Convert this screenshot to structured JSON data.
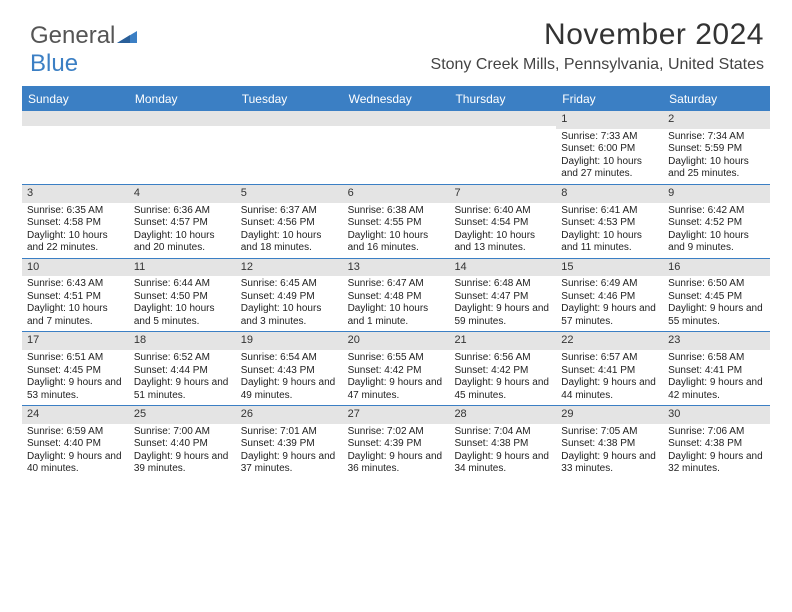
{
  "brand": {
    "word1": "General",
    "word2": "Blue"
  },
  "title": "November 2024",
  "location": "Stony Creek Mills, Pennsylvania, United States",
  "colors": {
    "accent": "#3b7fc4",
    "header_text": "#ffffff",
    "daynum_bg": "#e4e4e4",
    "body_text": "#222222",
    "page_bg": "#ffffff"
  },
  "dayHeaders": [
    "Sunday",
    "Monday",
    "Tuesday",
    "Wednesday",
    "Thursday",
    "Friday",
    "Saturday"
  ],
  "weeks": [
    [
      {
        "n": "",
        "sr": "",
        "ss": "",
        "dl": ""
      },
      {
        "n": "",
        "sr": "",
        "ss": "",
        "dl": ""
      },
      {
        "n": "",
        "sr": "",
        "ss": "",
        "dl": ""
      },
      {
        "n": "",
        "sr": "",
        "ss": "",
        "dl": ""
      },
      {
        "n": "",
        "sr": "",
        "ss": "",
        "dl": ""
      },
      {
        "n": "1",
        "sr": "Sunrise: 7:33 AM",
        "ss": "Sunset: 6:00 PM",
        "dl": "Daylight: 10 hours and 27 minutes."
      },
      {
        "n": "2",
        "sr": "Sunrise: 7:34 AM",
        "ss": "Sunset: 5:59 PM",
        "dl": "Daylight: 10 hours and 25 minutes."
      }
    ],
    [
      {
        "n": "3",
        "sr": "Sunrise: 6:35 AM",
        "ss": "Sunset: 4:58 PM",
        "dl": "Daylight: 10 hours and 22 minutes."
      },
      {
        "n": "4",
        "sr": "Sunrise: 6:36 AM",
        "ss": "Sunset: 4:57 PM",
        "dl": "Daylight: 10 hours and 20 minutes."
      },
      {
        "n": "5",
        "sr": "Sunrise: 6:37 AM",
        "ss": "Sunset: 4:56 PM",
        "dl": "Daylight: 10 hours and 18 minutes."
      },
      {
        "n": "6",
        "sr": "Sunrise: 6:38 AM",
        "ss": "Sunset: 4:55 PM",
        "dl": "Daylight: 10 hours and 16 minutes."
      },
      {
        "n": "7",
        "sr": "Sunrise: 6:40 AM",
        "ss": "Sunset: 4:54 PM",
        "dl": "Daylight: 10 hours and 13 minutes."
      },
      {
        "n": "8",
        "sr": "Sunrise: 6:41 AM",
        "ss": "Sunset: 4:53 PM",
        "dl": "Daylight: 10 hours and 11 minutes."
      },
      {
        "n": "9",
        "sr": "Sunrise: 6:42 AM",
        "ss": "Sunset: 4:52 PM",
        "dl": "Daylight: 10 hours and 9 minutes."
      }
    ],
    [
      {
        "n": "10",
        "sr": "Sunrise: 6:43 AM",
        "ss": "Sunset: 4:51 PM",
        "dl": "Daylight: 10 hours and 7 minutes."
      },
      {
        "n": "11",
        "sr": "Sunrise: 6:44 AM",
        "ss": "Sunset: 4:50 PM",
        "dl": "Daylight: 10 hours and 5 minutes."
      },
      {
        "n": "12",
        "sr": "Sunrise: 6:45 AM",
        "ss": "Sunset: 4:49 PM",
        "dl": "Daylight: 10 hours and 3 minutes."
      },
      {
        "n": "13",
        "sr": "Sunrise: 6:47 AM",
        "ss": "Sunset: 4:48 PM",
        "dl": "Daylight: 10 hours and 1 minute."
      },
      {
        "n": "14",
        "sr": "Sunrise: 6:48 AM",
        "ss": "Sunset: 4:47 PM",
        "dl": "Daylight: 9 hours and 59 minutes."
      },
      {
        "n": "15",
        "sr": "Sunrise: 6:49 AM",
        "ss": "Sunset: 4:46 PM",
        "dl": "Daylight: 9 hours and 57 minutes."
      },
      {
        "n": "16",
        "sr": "Sunrise: 6:50 AM",
        "ss": "Sunset: 4:45 PM",
        "dl": "Daylight: 9 hours and 55 minutes."
      }
    ],
    [
      {
        "n": "17",
        "sr": "Sunrise: 6:51 AM",
        "ss": "Sunset: 4:45 PM",
        "dl": "Daylight: 9 hours and 53 minutes."
      },
      {
        "n": "18",
        "sr": "Sunrise: 6:52 AM",
        "ss": "Sunset: 4:44 PM",
        "dl": "Daylight: 9 hours and 51 minutes."
      },
      {
        "n": "19",
        "sr": "Sunrise: 6:54 AM",
        "ss": "Sunset: 4:43 PM",
        "dl": "Daylight: 9 hours and 49 minutes."
      },
      {
        "n": "20",
        "sr": "Sunrise: 6:55 AM",
        "ss": "Sunset: 4:42 PM",
        "dl": "Daylight: 9 hours and 47 minutes."
      },
      {
        "n": "21",
        "sr": "Sunrise: 6:56 AM",
        "ss": "Sunset: 4:42 PM",
        "dl": "Daylight: 9 hours and 45 minutes."
      },
      {
        "n": "22",
        "sr": "Sunrise: 6:57 AM",
        "ss": "Sunset: 4:41 PM",
        "dl": "Daylight: 9 hours and 44 minutes."
      },
      {
        "n": "23",
        "sr": "Sunrise: 6:58 AM",
        "ss": "Sunset: 4:41 PM",
        "dl": "Daylight: 9 hours and 42 minutes."
      }
    ],
    [
      {
        "n": "24",
        "sr": "Sunrise: 6:59 AM",
        "ss": "Sunset: 4:40 PM",
        "dl": "Daylight: 9 hours and 40 minutes."
      },
      {
        "n": "25",
        "sr": "Sunrise: 7:00 AM",
        "ss": "Sunset: 4:40 PM",
        "dl": "Daylight: 9 hours and 39 minutes."
      },
      {
        "n": "26",
        "sr": "Sunrise: 7:01 AM",
        "ss": "Sunset: 4:39 PM",
        "dl": "Daylight: 9 hours and 37 minutes."
      },
      {
        "n": "27",
        "sr": "Sunrise: 7:02 AM",
        "ss": "Sunset: 4:39 PM",
        "dl": "Daylight: 9 hours and 36 minutes."
      },
      {
        "n": "28",
        "sr": "Sunrise: 7:04 AM",
        "ss": "Sunset: 4:38 PM",
        "dl": "Daylight: 9 hours and 34 minutes."
      },
      {
        "n": "29",
        "sr": "Sunrise: 7:05 AM",
        "ss": "Sunset: 4:38 PM",
        "dl": "Daylight: 9 hours and 33 minutes."
      },
      {
        "n": "30",
        "sr": "Sunrise: 7:06 AM",
        "ss": "Sunset: 4:38 PM",
        "dl": "Daylight: 9 hours and 32 minutes."
      }
    ]
  ]
}
